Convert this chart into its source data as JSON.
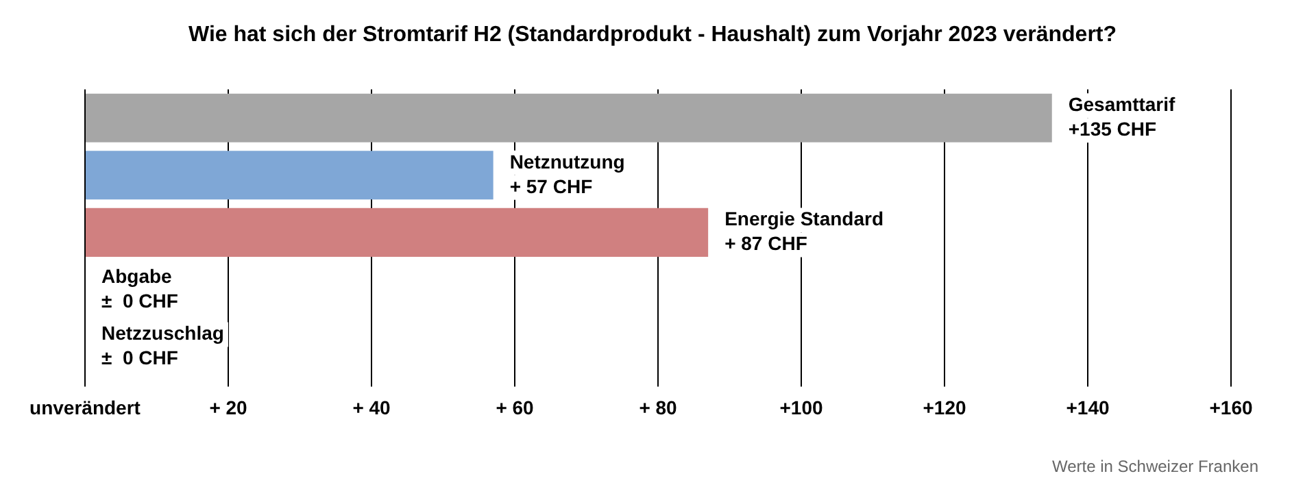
{
  "chart_data": {
    "type": "bar",
    "orientation": "horizontal",
    "title": "Wie hat sich der Stromtarif H2 (Standardprodukt - Haushalt) zum Vorjahr 2023 verändert?",
    "categories": [
      "Gesamttarif",
      "Netznutzung",
      "Energie Standard",
      "Abgabe",
      "Netzzuschlag"
    ],
    "values": [
      135,
      57,
      87,
      0,
      0
    ],
    "colors": [
      "#a6a6a6",
      "#7fa7d6",
      "#d08080",
      "#a6a6a6",
      "#a6a6a6"
    ],
    "value_labels": [
      "+135 CHF",
      "+ 57 CHF",
      "+ 87 CHF",
      "±  0 CHF",
      "±  0 CHF"
    ],
    "xlim": [
      0,
      160
    ],
    "xticks": [
      {
        "value": 0,
        "label": "unverändert"
      },
      {
        "value": 20,
        "label": "+ 20"
      },
      {
        "value": 40,
        "label": "+ 40"
      },
      {
        "value": 60,
        "label": "+ 60"
      },
      {
        "value": 80,
        "label": "+ 80"
      },
      {
        "value": 100,
        "label": "+100"
      },
      {
        "value": 120,
        "label": "+120"
      },
      {
        "value": 140,
        "label": "+140"
      },
      {
        "value": 160,
        "label": "+160"
      }
    ],
    "grid": "x",
    "legend": false,
    "tick_labels": "x",
    "annotations": [
      "Werte in Schweizer Franken"
    ]
  }
}
